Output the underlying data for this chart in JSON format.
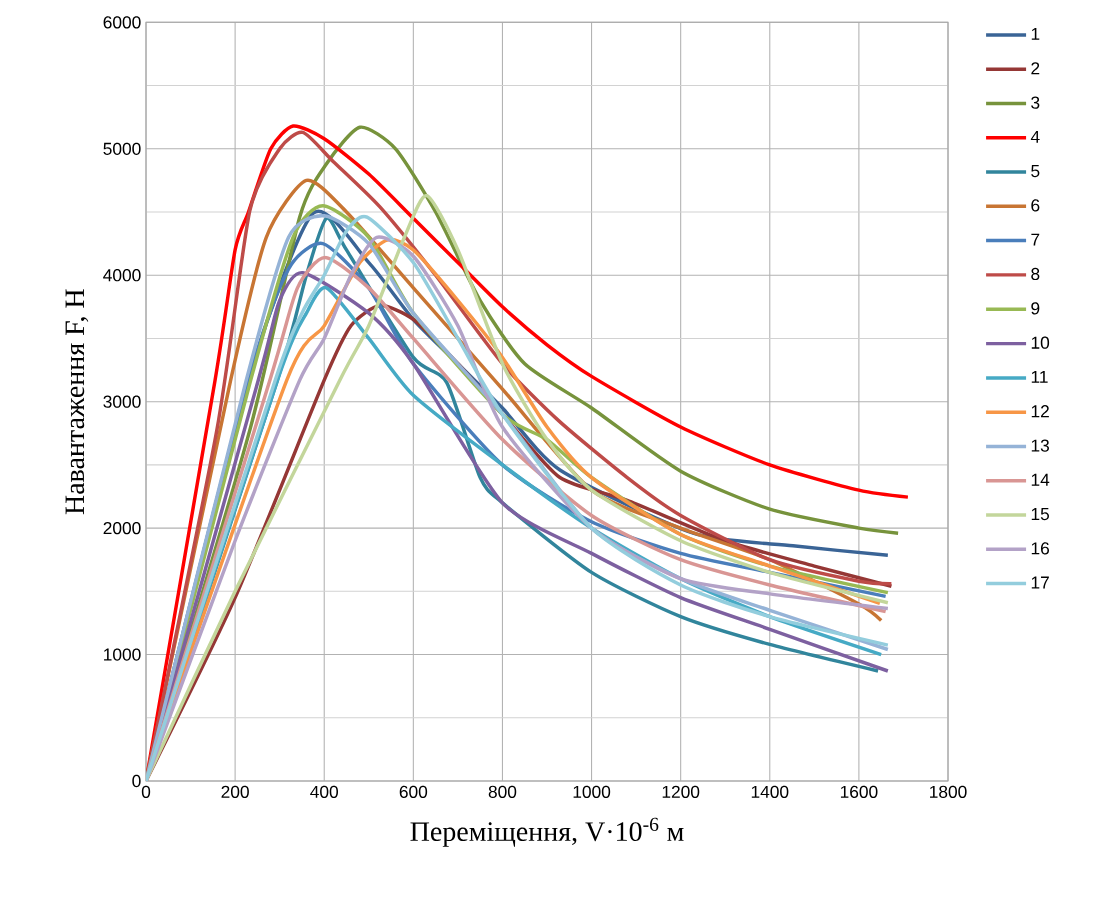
{
  "chart_data": {
    "type": "line",
    "xlabel": "Переміщення, V·10$^{-6}$ м",
    "ylabel": "Навантаження F, Н",
    "xlim": [
      0,
      1800
    ],
    "ylim": [
      0,
      6000
    ],
    "xticks": [
      0,
      200,
      400,
      600,
      800,
      1000,
      1200,
      1400,
      1600,
      1800
    ],
    "yticks": [
      0,
      1000,
      2000,
      3000,
      4000,
      5000,
      6000
    ],
    "grid": true,
    "legend": "right",
    "line_style": "solid",
    "series": [
      {
        "name": "1",
        "color": "#3a6496",
        "x": [
          0,
          230,
          375,
          500,
          600,
          700,
          800,
          929,
          1228,
          1452,
          1665
        ],
        "values": [
          0,
          3170,
          4490,
          4100,
          3650,
          3300,
          2950,
          2460,
          1960,
          1860,
          1785
        ]
      },
      {
        "name": "2",
        "color": "#953735",
        "x": [
          0,
          200,
          400,
          460,
          525,
          600,
          700,
          800,
          929,
          1080,
          1300,
          1500,
          1673
        ],
        "values": [
          0,
          1450,
          3170,
          3600,
          3760,
          3650,
          3300,
          2900,
          2400,
          2220,
          1900,
          1700,
          1540
        ]
      },
      {
        "name": "3",
        "color": "#77933c",
        "x": [
          0,
          233,
          345,
          406,
          480,
          560,
          650,
          750,
          850,
          1000,
          1200,
          1400,
          1600,
          1688
        ],
        "values": [
          0,
          2775,
          4460,
          4885,
          5170,
          5000,
          4500,
          3800,
          3300,
          2950,
          2450,
          2150,
          2000,
          1960
        ]
      },
      {
        "name": "4",
        "color": "#ff0000",
        "x": [
          0,
          155,
          200,
          230,
          280,
          330,
          400,
          500,
          600,
          700,
          800,
          900,
          1000,
          1200,
          1400,
          1600,
          1710
        ],
        "values": [
          0,
          3170,
          4200,
          4500,
          5000,
          5180,
          5080,
          4800,
          4450,
          4100,
          3750,
          3450,
          3200,
          2800,
          2500,
          2300,
          2245
        ]
      },
      {
        "name": "5",
        "color": "#31859c",
        "x": [
          0,
          295,
          360,
          405,
          450,
          600,
          675,
          750,
          800,
          1000,
          1200,
          1400,
          1643
        ],
        "values": [
          0,
          3170,
          4000,
          4450,
          4200,
          3350,
          3150,
          2400,
          2200,
          1650,
          1300,
          1080,
          870
        ]
      },
      {
        "name": "6",
        "color": "#c87533",
        "x": [
          0,
          190,
          270,
          360,
          450,
          600,
          800,
          1000,
          1200,
          1400,
          1600,
          1650
        ],
        "values": [
          0,
          3170,
          4300,
          4750,
          4500,
          3900,
          3100,
          2300,
          2000,
          1750,
          1400,
          1270
        ]
      },
      {
        "name": "7",
        "color": "#4a7ebb",
        "x": [
          0,
          230,
          320,
          397,
          500,
          600,
          800,
          1000,
          1200,
          1400,
          1660
        ],
        "values": [
          0,
          3170,
          4050,
          4250,
          3900,
          3300,
          2500,
          2050,
          1800,
          1650,
          1460
        ]
      },
      {
        "name": "8",
        "color": "#be4b48",
        "x": [
          0,
          159,
          233,
          300,
          352,
          420,
          525,
          650,
          800,
          926,
          1080,
          1200,
          1400,
          1600,
          1673
        ],
        "values": [
          0,
          2775,
          4510,
          5000,
          5130,
          4900,
          4540,
          4000,
          3300,
          2850,
          2400,
          2100,
          1750,
          1580,
          1560
        ]
      },
      {
        "name": "9",
        "color": "#98b954",
        "x": [
          0,
          235,
          330,
          397,
          500,
          600,
          800,
          900,
          1000,
          1200,
          1400,
          1665
        ],
        "values": [
          0,
          3170,
          4300,
          4550,
          4300,
          3700,
          2900,
          2700,
          2400,
          1950,
          1700,
          1490
        ]
      },
      {
        "name": "10",
        "color": "#7d60a0",
        "x": [
          0,
          252,
          300,
          352,
          500,
          600,
          800,
          1000,
          1200,
          1400,
          1665
        ],
        "values": [
          0,
          3170,
          3800,
          4020,
          3700,
          3300,
          2200,
          1800,
          1450,
          1200,
          870
        ]
      },
      {
        "name": "11",
        "color": "#46aac5",
        "x": [
          0,
          295,
          360,
          405,
          500,
          600,
          800,
          1000,
          1200,
          1400,
          1650
        ],
        "values": [
          0,
          3170,
          3700,
          3900,
          3500,
          3050,
          2500,
          2000,
          1600,
          1300,
          1000
        ]
      },
      {
        "name": "12",
        "color": "#f79646",
        "x": [
          0,
          316,
          400,
          480,
          543,
          600,
          700,
          800,
          900,
          1000,
          1200,
          1400,
          1647
        ],
        "values": [
          0,
          3170,
          3600,
          4100,
          4280,
          4200,
          3800,
          3350,
          2800,
          2400,
          1950,
          1700,
          1405
        ]
      },
      {
        "name": "13",
        "color": "#95b3d7",
        "x": [
          0,
          225,
          320,
          400,
          500,
          600,
          800,
          1000,
          1200,
          1400,
          1665
        ],
        "values": [
          0,
          3170,
          4300,
          4470,
          4250,
          3700,
          2900,
          2000,
          1600,
          1350,
          1040
        ]
      },
      {
        "name": "14",
        "color": "#d99694",
        "x": [
          0,
          278,
          340,
          402,
          500,
          600,
          800,
          1000,
          1200,
          1400,
          1660
        ],
        "values": [
          0,
          3170,
          3900,
          4140,
          3900,
          3500,
          2700,
          2100,
          1750,
          1550,
          1340
        ]
      },
      {
        "name": "15",
        "color": "#c3d69b",
        "x": [
          0,
          200,
          435,
          500,
          580,
          630,
          700,
          800,
          900,
          1000,
          1200,
          1400,
          1665
        ],
        "values": [
          0,
          1500,
          3170,
          3600,
          4300,
          4630,
          4200,
          3300,
          2700,
          2300,
          1900,
          1650,
          1410
        ]
      },
      {
        "name": "16",
        "color": "#b3a2c7",
        "x": [
          0,
          200,
          345,
          400,
          460,
          518,
          600,
          700,
          800,
          1000,
          1200,
          1400,
          1665
        ],
        "values": [
          0,
          1900,
          3170,
          3500,
          4000,
          4300,
          4150,
          3600,
          2800,
          2000,
          1600,
          1480,
          1365
        ]
      },
      {
        "name": "17",
        "color": "#93cddd",
        "x": [
          0,
          290,
          350,
          400,
          450,
          496,
          600,
          700,
          800,
          1000,
          1200,
          1400,
          1665
        ],
        "values": [
          0,
          3170,
          3700,
          4000,
          4350,
          4460,
          4100,
          3500,
          2900,
          2000,
          1550,
          1300,
          1075
        ]
      }
    ]
  }
}
